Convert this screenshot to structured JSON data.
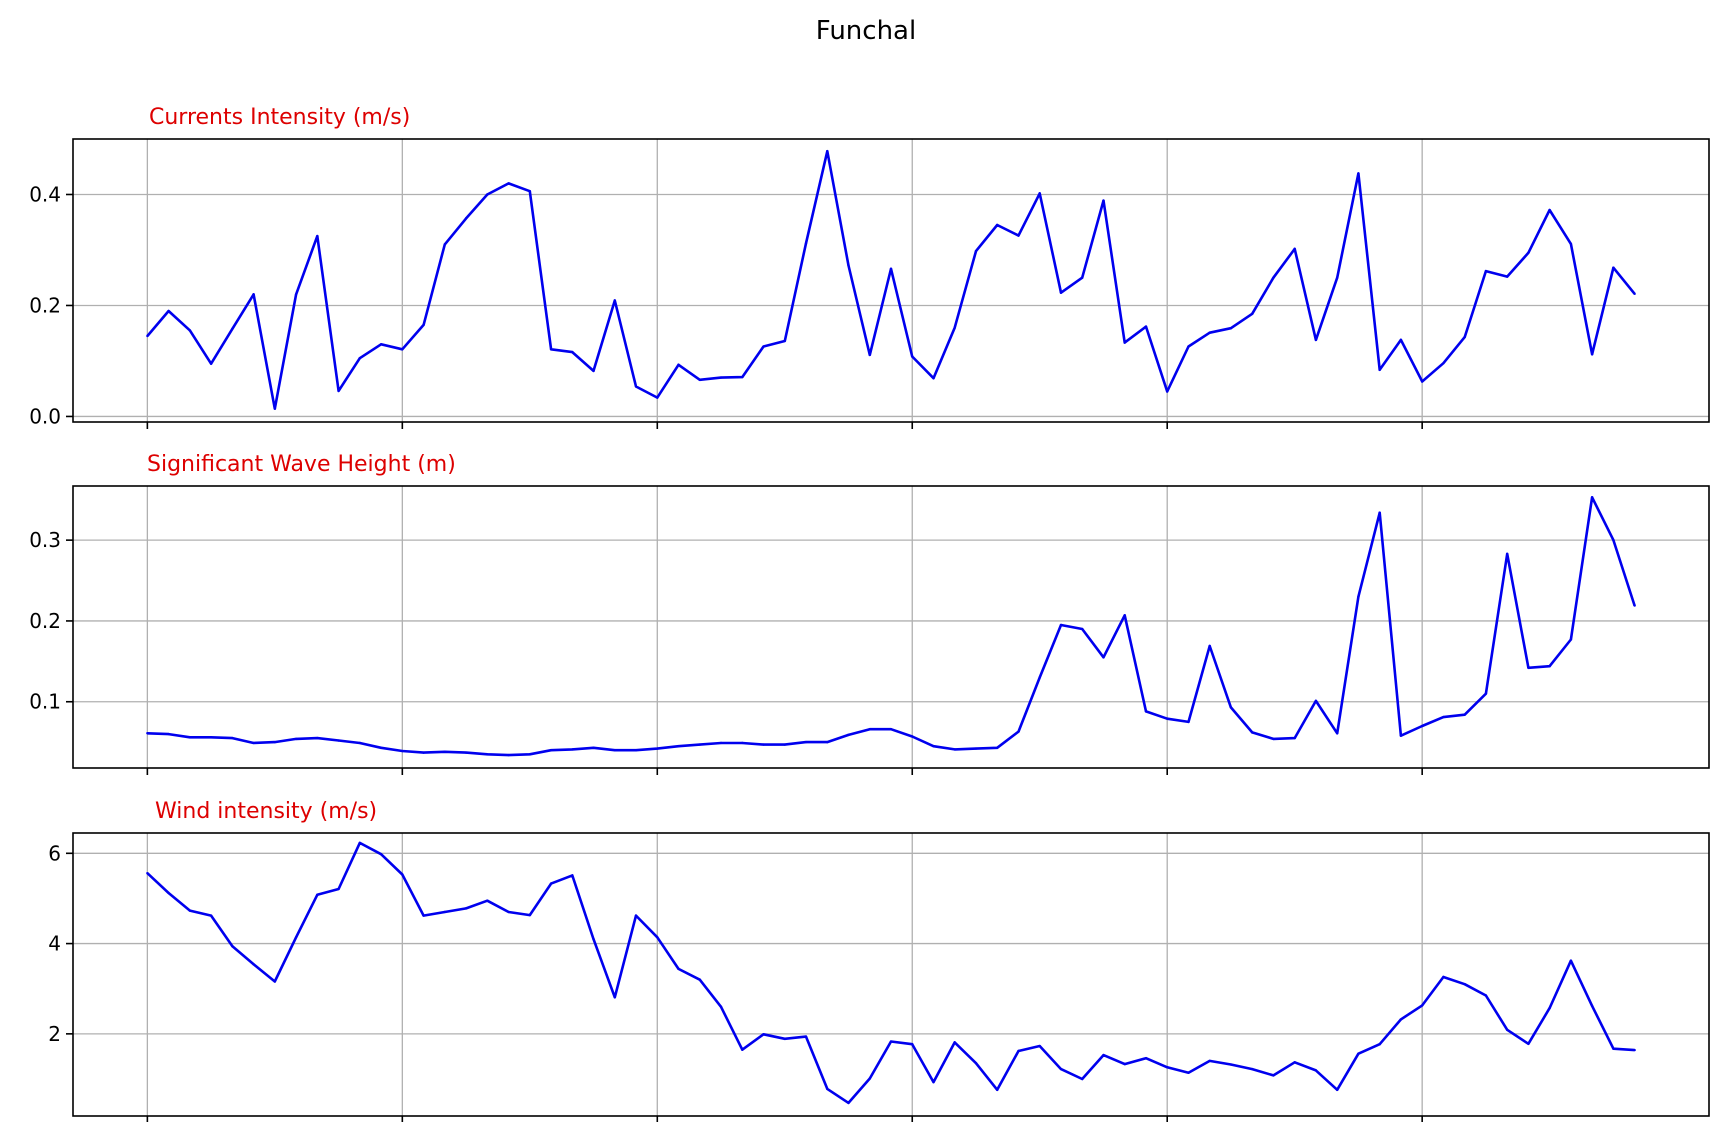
{
  "figure_title": "Funchal",
  "chart_data": [
    {
      "type": "line",
      "title": "Currents Intensity (m/s)",
      "xlabel": "",
      "ylabel": "",
      "ylim": [
        -0.01,
        0.5
      ],
      "yticks": [
        0.0,
        0.2,
        0.4
      ],
      "ytick_labels": [
        "0.0",
        "0.2",
        "0.4"
      ],
      "xlim": [
        -3.5,
        73.5
      ],
      "xticks": [
        0,
        12,
        24,
        36,
        48,
        60
      ],
      "grid": true,
      "colors": {
        "line": "#0000ee",
        "title": "#dd0000",
        "grid": "#b0b0b0"
      },
      "series": [
        {
          "values": [
            0.145,
            0.19,
            0.155,
            0.095,
            0.158,
            0.22,
            0.014,
            0.22,
            0.325,
            0.046,
            0.105,
            0.13,
            0.121,
            0.165,
            0.31,
            0.357,
            0.4,
            0.42,
            0.406,
            0.121,
            0.116,
            0.082,
            0.209,
            0.054,
            0.034,
            0.093,
            0.066,
            0.07,
            0.071,
            0.126,
            0.136,
            0.312,
            0.478,
            0.272,
            0.111,
            0.266,
            0.108,
            0.069,
            0.16,
            0.298,
            0.345,
            0.326,
            0.402,
            0.223,
            0.25,
            0.389,
            0.133,
            0.162,
            0.045,
            0.126,
            0.151,
            0.159,
            0.185,
            0.25,
            0.302,
            0.138,
            0.25,
            0.438,
            0.084,
            0.138,
            0.063,
            0.096,
            0.143,
            0.262,
            0.252,
            0.295,
            0.372,
            0.311,
            0.112,
            0.268,
            0.221
          ]
        }
      ]
    },
    {
      "type": "line",
      "title": "Significant Wave Height (m)",
      "xlabel": "",
      "ylabel": "",
      "ylim": [
        0.018,
        0.367
      ],
      "yticks": [
        0.1,
        0.2,
        0.3
      ],
      "ytick_labels": [
        "0.1",
        "0.2",
        "0.3"
      ],
      "xlim": [
        -3.5,
        73.5
      ],
      "xticks": [
        0,
        12,
        24,
        36,
        48,
        60
      ],
      "grid": true,
      "colors": {
        "line": "#0000ee",
        "title": "#dd0000",
        "grid": "#b0b0b0"
      },
      "series": [
        {
          "values": [
            0.061,
            0.06,
            0.056,
            0.056,
            0.055,
            0.049,
            0.05,
            0.054,
            0.055,
            0.052,
            0.049,
            0.043,
            0.039,
            0.037,
            0.038,
            0.037,
            0.035,
            0.034,
            0.035,
            0.04,
            0.041,
            0.043,
            0.04,
            0.04,
            0.042,
            0.045,
            0.047,
            0.049,
            0.049,
            0.047,
            0.047,
            0.05,
            0.05,
            0.059,
            0.066,
            0.066,
            0.057,
            0.045,
            0.041,
            0.042,
            0.043,
            0.063,
            0.13,
            0.195,
            0.19,
            0.155,
            0.207,
            0.088,
            0.079,
            0.075,
            0.169,
            0.093,
            0.062,
            0.054,
            0.055,
            0.101,
            0.061,
            0.23,
            0.334,
            0.058,
            0.07,
            0.081,
            0.084,
            0.11,
            0.283,
            0.142,
            0.144,
            0.177,
            0.353,
            0.3,
            0.219
          ]
        }
      ]
    },
    {
      "type": "line",
      "title": "Wind intensity (m/s)",
      "xlabel": "",
      "ylabel": "",
      "ylim": [
        0.18,
        6.45
      ],
      "yticks": [
        2,
        4,
        6
      ],
      "ytick_labels": [
        "2",
        "4",
        "6"
      ],
      "xlim": [
        -3.5,
        73.5
      ],
      "xticks": [
        0,
        12,
        24,
        36,
        48,
        60
      ],
      "grid": true,
      "colors": {
        "line": "#0000ee",
        "title": "#dd0000",
        "grid": "#b0b0b0"
      },
      "series": [
        {
          "values": [
            5.56,
            5.12,
            4.73,
            4.62,
            3.94,
            3.54,
            3.16,
            4.14,
            5.08,
            5.21,
            6.23,
            5.98,
            5.53,
            4.62,
            4.7,
            4.78,
            4.95,
            4.7,
            4.63,
            5.33,
            5.51,
            4.1,
            2.81,
            4.62,
            4.14,
            3.44,
            3.2,
            2.6,
            1.65,
            1.99,
            1.89,
            1.94,
            0.78,
            0.47,
            1.01,
            1.83,
            1.77,
            0.93,
            1.81,
            1.35,
            0.76,
            1.62,
            1.73,
            1.22,
            1.0,
            1.53,
            1.33,
            1.46,
            1.26,
            1.14,
            1.4,
            1.32,
            1.22,
            1.08,
            1.37,
            1.19,
            0.76,
            1.56,
            1.77,
            2.32,
            2.63,
            3.26,
            3.1,
            2.85,
            2.09,
            1.78,
            2.57,
            3.62,
            2.62,
            1.67,
            1.64
          ]
        }
      ]
    }
  ]
}
